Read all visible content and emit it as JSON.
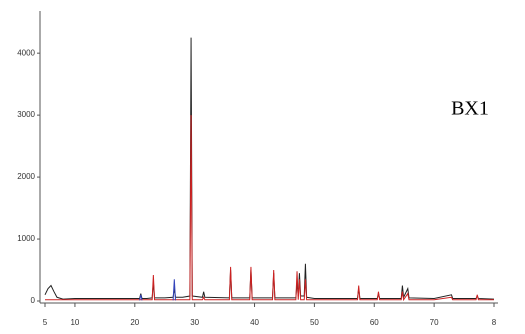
{
  "chart_data": {
    "type": "line",
    "annotation": "BX1",
    "x": [
      5,
      5.5,
      6,
      6.5,
      7,
      8,
      10,
      15,
      20,
      20.8,
      21,
      21.2,
      22,
      22.9,
      23.1,
      23.3,
      25,
      26.4,
      26.6,
      26.8,
      28,
      29.2,
      29.4,
      29.6,
      31.3,
      31.5,
      31.7,
      35.8,
      36,
      36.2,
      39.2,
      39.4,
      39.6,
      43,
      43.2,
      43.4,
      46.9,
      47.1,
      47.3,
      47.5,
      47.7,
      48.3,
      48.5,
      48.7,
      50,
      55,
      57.2,
      57.4,
      57.6,
      60.5,
      60.7,
      60.9,
      64.5,
      64.7,
      64.9,
      65.6,
      65.8,
      70,
      72.9,
      73.1,
      77,
      77.2,
      77.4,
      80
    ],
    "series": [
      {
        "color": "#222222",
        "values": [
          100,
          200,
          250,
          150,
          60,
          30,
          40,
          40,
          40,
          40,
          120,
          40,
          40,
          50,
          300,
          50,
          50,
          60,
          200,
          60,
          60,
          80,
          4250,
          80,
          60,
          150,
          60,
          50,
          500,
          50,
          50,
          500,
          50,
          50,
          450,
          50,
          50,
          300,
          80,
          450,
          80,
          80,
          600,
          60,
          40,
          40,
          40,
          200,
          40,
          40,
          120,
          40,
          40,
          250,
          60,
          200,
          50,
          40,
          100,
          40,
          40,
          80,
          40,
          30
        ]
      },
      {
        "color": "#cc2222",
        "values": [
          20,
          20,
          20,
          20,
          20,
          20,
          20,
          20,
          20,
          20,
          20,
          20,
          20,
          20,
          420,
          20,
          20,
          20,
          20,
          20,
          20,
          20,
          3000,
          20,
          20,
          60,
          20,
          20,
          550,
          20,
          20,
          550,
          20,
          20,
          500,
          20,
          20,
          480,
          20,
          350,
          20,
          20,
          350,
          20,
          20,
          20,
          20,
          250,
          20,
          20,
          150,
          20,
          20,
          150,
          20,
          120,
          20,
          20,
          60,
          20,
          20,
          100,
          20,
          20
        ]
      },
      {
        "color": "#3344bb",
        "values": [
          null,
          null,
          null,
          null,
          null,
          null,
          null,
          null,
          null,
          10,
          100,
          10,
          null,
          null,
          null,
          null,
          null,
          10,
          350,
          10,
          null,
          null,
          null,
          null,
          null,
          null,
          null,
          null,
          null,
          null,
          null,
          null,
          null,
          null,
          null,
          null,
          null,
          null,
          null,
          null,
          null,
          null,
          null,
          null,
          null,
          null,
          null,
          null,
          null,
          null,
          null,
          null,
          null,
          null,
          null,
          null,
          null,
          null,
          null,
          null,
          null,
          null,
          null,
          null
        ]
      }
    ],
    "xlim": [
      5,
      80
    ],
    "ylim": [
      0,
      4600
    ],
    "xticks": [
      5,
      10,
      20,
      30,
      40,
      50,
      60,
      70,
      {
        "value": 80,
        "label": "8"
      }
    ],
    "yticks": [
      0,
      1000,
      2000,
      3000,
      4000
    ]
  }
}
